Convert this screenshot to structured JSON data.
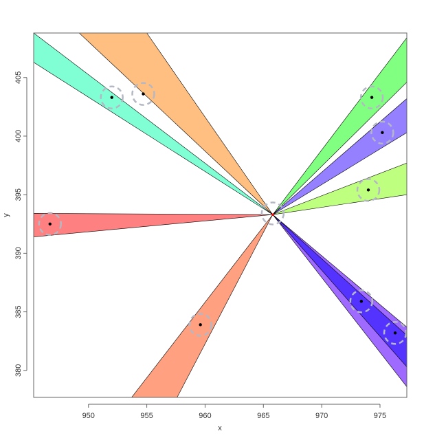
{
  "chart_data": {
    "type": "area",
    "xlabel": "x",
    "ylabel": "y",
    "xlim": [
      945.3,
      977.3
    ],
    "ylim": [
      377.7,
      408.8
    ],
    "x_ticks": [
      950,
      955,
      960,
      965,
      970,
      975
    ],
    "y_ticks": [
      380,
      385,
      390,
      395,
      400,
      405
    ],
    "x_tick_labels": [
      "950",
      "955",
      "960",
      "965",
      "970",
      "975"
    ],
    "y_tick_labels": [
      "380",
      "385",
      "390",
      "395",
      "400",
      "405"
    ],
    "grid": false,
    "center": {
      "x": 965.8,
      "y": 393.3
    },
    "wedges": [
      {
        "color": "#ffbf80",
        "edge_a": [
          949.2,
          408.8
        ],
        "edge_b": [
          955.0,
          408.8
        ],
        "point": [
          954.7,
          403.6
        ]
      },
      {
        "color": "#80ffd5",
        "edge_a": [
          945.3,
          406.3
        ],
        "edge_b": [
          945.3,
          408.8
        ],
        "point": [
          952.0,
          403.3
        ]
      },
      {
        "color": "#80ff80",
        "edge_a": [
          977.3,
          404.6
        ],
        "edge_b": [
          977.3,
          408.4
        ],
        "point": [
          974.3,
          403.3
        ]
      },
      {
        "color": "#9580ff",
        "edge_a": [
          977.3,
          400.3
        ],
        "edge_b": [
          977.3,
          403.2
        ],
        "point": [
          975.2,
          400.3
        ]
      },
      {
        "color": "#bfff80",
        "edge_a": [
          977.3,
          395.0
        ],
        "edge_b": [
          977.3,
          397.7
        ],
        "point": [
          974.0,
          395.4
        ]
      },
      {
        "color": "#ff8080",
        "edge_a": [
          945.3,
          393.4
        ],
        "edge_b": [
          945.3,
          391.4
        ],
        "point": [
          946.7,
          392.5
        ]
      },
      {
        "color": "#ffa080",
        "edge_a": [
          953.7,
          377.7
        ],
        "edge_b": [
          957.6,
          377.7
        ],
        "point": [
          959.6,
          383.9
        ]
      },
      {
        "color": "#9f6aff",
        "edge_a": [
          977.3,
          383.7
        ],
        "edge_b": [
          977.3,
          378.6
        ],
        "point": [
          976.3,
          383.2
        ]
      },
      {
        "color": "#5533ff",
        "edge_a": [
          977.3,
          383.0
        ],
        "edge_b": [
          977.3,
          380.3
        ],
        "point": [
          973.4,
          385.9
        ]
      }
    ],
    "central_circle": [
      965.8,
      393.4
    ]
  }
}
